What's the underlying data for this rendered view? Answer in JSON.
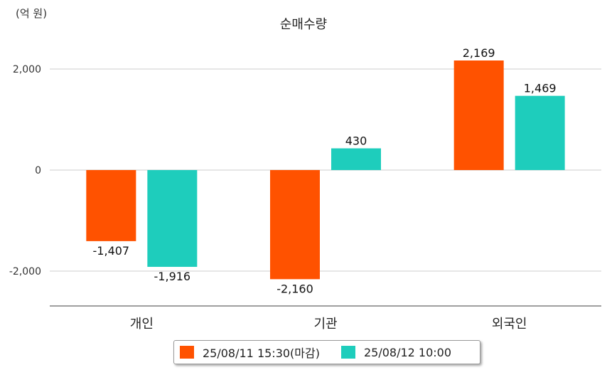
{
  "unit_label": "(억 원)",
  "chart_data": {
    "type": "bar",
    "title": "순매수량",
    "xlabel": "",
    "ylabel": "",
    "categories": [
      "개인",
      "기관",
      "외국인"
    ],
    "series": [
      {
        "name": "25/08/11 15:30(마감)",
        "color": "#FF5200",
        "values": [
          -1407,
          -2160,
          2169
        ]
      },
      {
        "name": "25/08/12 10:00",
        "color": "#1ECDBC",
        "values": [
          -1916,
          430,
          1469
        ]
      }
    ],
    "ylim": [
      -2700,
      2700
    ],
    "yticks": [
      -2000,
      0,
      2000
    ],
    "ytick_labels": [
      "-2,000",
      "0",
      "2,000"
    ],
    "data_labels": [
      [
        "-1,407",
        "-2,160",
        "2,169"
      ],
      [
        "-1,916",
        "430",
        "1,469"
      ]
    ],
    "grid": true,
    "legend": "bottom"
  }
}
